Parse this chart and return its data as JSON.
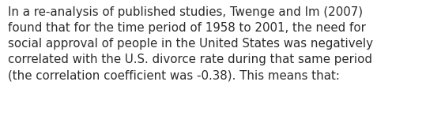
{
  "text": "In a re-analysis of published studies, Twenge and Im (2007)\nfound that for the time period of 1958 to 2001, the need for\nsocial approval of people in the United States was negatively\ncorrelated with the U.S. divorce rate during that same period\n(the correlation coefficient was -0.38). This means that:",
  "background_color": "#ffffff",
  "text_color": "#2b2b2b",
  "font_size": 10.8,
  "font_family": "DejaVu Sans",
  "fig_width": 5.58,
  "fig_height": 1.46,
  "dpi": 100
}
